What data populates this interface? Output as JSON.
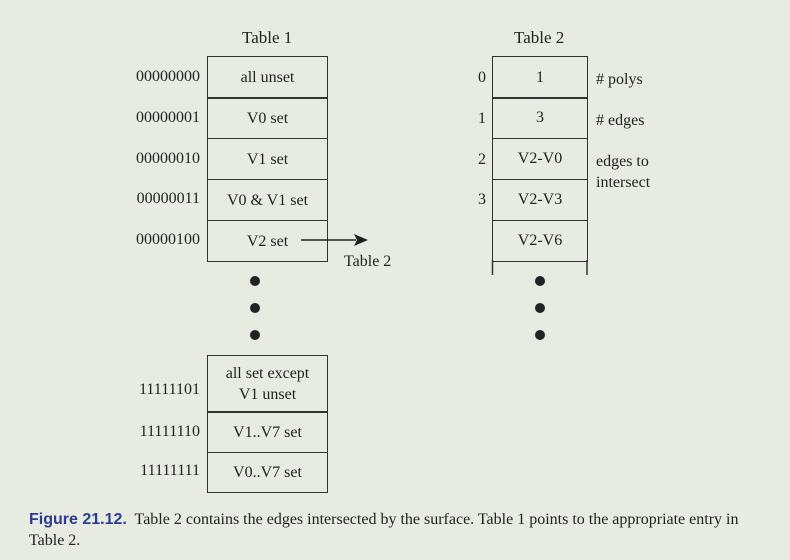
{
  "table1": {
    "title": "Table 1",
    "rows": [
      {
        "code": "00000000",
        "label": "all unset"
      },
      {
        "code": "00000001",
        "label": "V0 set"
      },
      {
        "code": "00000010",
        "label": "V1 set"
      },
      {
        "code": "00000011",
        "label": "V0 & V1 set"
      },
      {
        "code": "00000100",
        "label": "V2 set"
      }
    ],
    "bottom_rows": [
      {
        "code": "11111101",
        "label_line1": "all set except",
        "label_line2": "V1 unset"
      },
      {
        "code": "11111110",
        "label": "V1..V7 set"
      },
      {
        "code": "11111111",
        "label": "V0..V7 set"
      }
    ]
  },
  "arrow_label": "Table 2",
  "table2": {
    "title": "Table 2",
    "rows": [
      {
        "index": "0",
        "value": "1",
        "note": "# polys"
      },
      {
        "index": "1",
        "value": "3",
        "note": "# edges"
      },
      {
        "index": "2",
        "value": "V2-V0",
        "note_line1": "edges to",
        "note_line2": "intersect"
      },
      {
        "index": "3",
        "value": "V2-V3"
      },
      {
        "value": "V2-V6"
      }
    ]
  },
  "caption": {
    "label": "Figure 21.12.",
    "text": "Table 2 contains the edges intersected by the surface. Table 1 points to the appropriate entry in Table 2."
  }
}
